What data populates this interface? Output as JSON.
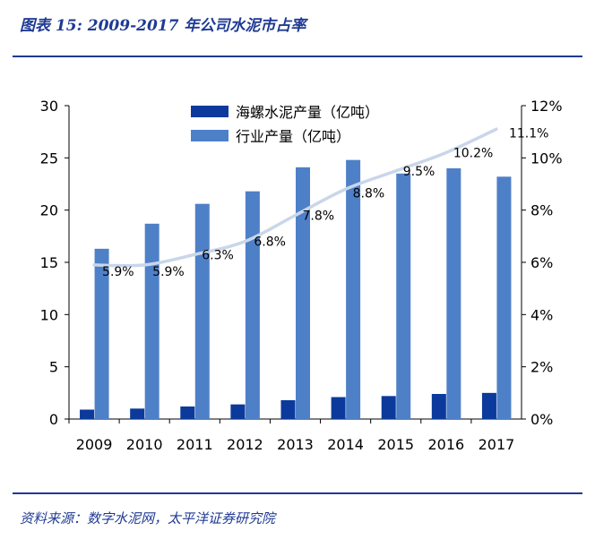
{
  "header": {
    "title": "图表 15: 2009-2017 年公司水泥市占率"
  },
  "footer": {
    "source": "资料来源：数字水泥网，太平洋证券研究院"
  },
  "chart_data": {
    "type": "bar",
    "categories": [
      "2009",
      "2010",
      "2011",
      "2012",
      "2013",
      "2014",
      "2015",
      "2016",
      "2017"
    ],
    "series": [
      {
        "name": "海螺水泥产量（亿吨）",
        "type": "bar",
        "axis": "left",
        "color": "#0b3a9c",
        "values": [
          0.9,
          1.0,
          1.2,
          1.4,
          1.8,
          2.1,
          2.2,
          2.4,
          2.5
        ]
      },
      {
        "name": "行业产量（亿吨）",
        "type": "bar",
        "axis": "left",
        "color": "#4e80c8",
        "values": [
          16.3,
          18.7,
          20.6,
          21.8,
          24.1,
          24.8,
          23.5,
          24.0,
          23.2
        ]
      },
      {
        "name": "",
        "type": "line",
        "axis": "right",
        "color": "#c9d6ea",
        "values": [
          5.9,
          5.9,
          6.3,
          6.8,
          7.8,
          8.8,
          9.5,
          10.2,
          11.1
        ],
        "labels": [
          "5.9%",
          "5.9%",
          "6.3%",
          "6.8%",
          "7.8%",
          "8.8%",
          "9.5%",
          "10.2%",
          "11.1%"
        ]
      }
    ],
    "y_left": {
      "ylim": [
        0,
        30
      ],
      "ticks": [
        "0",
        "5",
        "10",
        "15",
        "20",
        "25",
        "30"
      ]
    },
    "y_right": {
      "ylim": [
        0,
        12
      ],
      "ticks": [
        "0%",
        "2%",
        "4%",
        "6%",
        "8%",
        "10%",
        "12%"
      ]
    },
    "legend": {
      "placement": "top-center"
    },
    "grid": false
  }
}
